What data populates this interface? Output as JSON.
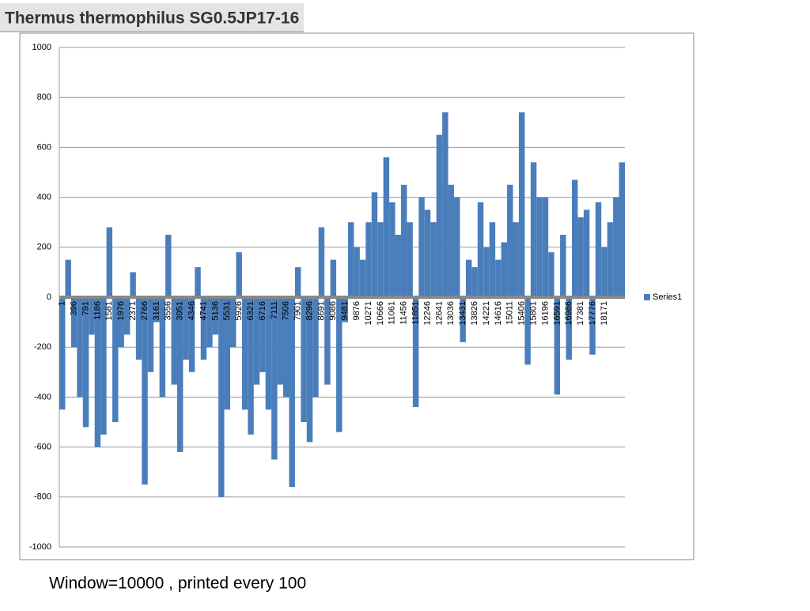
{
  "chart_data": {
    "type": "bar",
    "title": "Thermus thermophilus SG0.5JP17-16",
    "caption": "Window=10000 , printed every 100",
    "categories": [
      "1",
      null,
      "396",
      null,
      "791",
      null,
      "1186",
      null,
      "1581",
      null,
      "1976",
      null,
      "2371",
      null,
      "2766",
      null,
      "3161",
      null,
      "3556",
      null,
      "3951",
      null,
      "4346",
      null,
      "4741",
      null,
      "5136",
      null,
      "5531",
      null,
      "5926",
      null,
      "6321",
      null,
      "6716",
      null,
      "7111",
      null,
      "7506",
      null,
      "7901",
      null,
      "8296",
      null,
      "8691",
      null,
      "9086",
      null,
      "9481",
      null,
      "9876",
      null,
      "10271",
      null,
      "10666",
      null,
      "11061",
      null,
      "11456",
      null,
      "11851",
      null,
      "12246",
      null,
      "12641",
      null,
      "13036",
      null,
      "13431",
      null,
      "13826",
      null,
      "14221",
      null,
      "14616",
      null,
      "15011",
      null,
      "15406",
      null,
      "15801",
      null,
      "16196",
      null,
      "16591",
      null,
      "16986",
      null,
      "17381",
      null,
      "17776",
      null,
      "18171",
      null,
      null,
      null
    ],
    "series": [
      {
        "name": "Series1",
        "color": "#4a7ebb",
        "values": [
          -450,
          150,
          -200,
          -400,
          -520,
          -150,
          -600,
          -550,
          280,
          -500,
          -200,
          -150,
          100,
          -250,
          -750,
          -300,
          -100,
          -400,
          250,
          -350,
          -620,
          -250,
          -300,
          120,
          -250,
          -200,
          -150,
          -800,
          -450,
          -200,
          180,
          -450,
          -550,
          -350,
          -300,
          -450,
          -650,
          -350,
          -400,
          -760,
          120,
          -500,
          -580,
          -400,
          280,
          -350,
          150,
          -540,
          -100,
          300,
          200,
          150,
          300,
          420,
          300,
          560,
          380,
          250,
          450,
          300,
          -440,
          400,
          350,
          300,
          650,
          740,
          450,
          400,
          -180,
          150,
          120,
          380,
          200,
          300,
          150,
          220,
          450,
          300,
          740,
          -270,
          540,
          400,
          400,
          180,
          -390,
          250,
          -250,
          470,
          320,
          350,
          -230,
          380,
          200,
          300,
          400,
          540
        ]
      }
    ],
    "ylim": [
      -1000,
      1000
    ],
    "yticks": [
      -1000,
      -800,
      -600,
      -400,
      -200,
      0,
      200,
      400,
      600,
      800,
      1000
    ],
    "grid": true,
    "legend": "right"
  }
}
